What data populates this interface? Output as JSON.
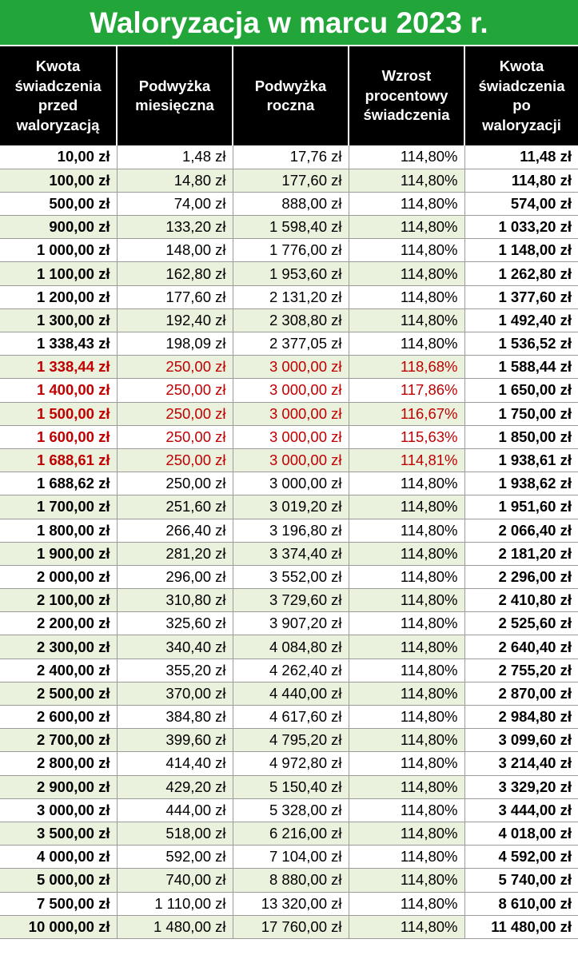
{
  "title": "Waloryzacja w marcu 2023 r.",
  "headers": [
    [
      "Kwota",
      "świadczenia",
      "przed",
      "waloryzacją"
    ],
    [
      "Podwyżka",
      "miesięczna"
    ],
    [
      "Podwyżka",
      "roczna"
    ],
    [
      "Wzrost",
      "procentowy",
      "świadczenia"
    ],
    [
      "Kwota",
      "świadczenia",
      "po",
      "waloryzacji"
    ]
  ],
  "colors": {
    "title_bg": "#22a63a",
    "header_bg": "#000000",
    "alt_row": "#eaf1dd",
    "highlight": "#c00000"
  },
  "rows": [
    {
      "hl": false,
      "cells": [
        "10,00 zł",
        "1,48 zł",
        "17,76 zł",
        "114,80%",
        "11,48 zł"
      ]
    },
    {
      "hl": false,
      "cells": [
        "100,00 zł",
        "14,80 zł",
        "177,60 zł",
        "114,80%",
        "114,80 zł"
      ]
    },
    {
      "hl": false,
      "cells": [
        "500,00 zł",
        "74,00 zł",
        "888,00 zł",
        "114,80%",
        "574,00 zł"
      ]
    },
    {
      "hl": false,
      "cells": [
        "900,00 zł",
        "133,20 zł",
        "1 598,40 zł",
        "114,80%",
        "1 033,20 zł"
      ]
    },
    {
      "hl": false,
      "cells": [
        "1 000,00 zł",
        "148,00 zł",
        "1 776,00 zł",
        "114,80%",
        "1 148,00 zł"
      ]
    },
    {
      "hl": false,
      "cells": [
        "1 100,00 zł",
        "162,80 zł",
        "1 953,60 zł",
        "114,80%",
        "1 262,80 zł"
      ]
    },
    {
      "hl": false,
      "cells": [
        "1 200,00 zł",
        "177,60 zł",
        "2 131,20 zł",
        "114,80%",
        "1 377,60 zł"
      ]
    },
    {
      "hl": false,
      "cells": [
        "1 300,00 zł",
        "192,40 zł",
        "2 308,80 zł",
        "114,80%",
        "1 492,40 zł"
      ]
    },
    {
      "hl": false,
      "cells": [
        "1 338,43 zł",
        "198,09 zł",
        "2 377,05 zł",
        "114,80%",
        "1 536,52 zł"
      ]
    },
    {
      "hl": true,
      "cells": [
        "1 338,44 zł",
        "250,00 zł",
        "3 000,00 zł",
        "118,68%",
        "1 588,44 zł"
      ]
    },
    {
      "hl": true,
      "cells": [
        "1 400,00 zł",
        "250,00 zł",
        "3 000,00 zł",
        "117,86%",
        "1 650,00 zł"
      ]
    },
    {
      "hl": true,
      "cells": [
        "1 500,00 zł",
        "250,00 zł",
        "3 000,00 zł",
        "116,67%",
        "1 750,00 zł"
      ]
    },
    {
      "hl": true,
      "cells": [
        "1 600,00 zł",
        "250,00 zł",
        "3 000,00 zł",
        "115,63%",
        "1 850,00 zł"
      ]
    },
    {
      "hl": true,
      "cells": [
        "1 688,61 zł",
        "250,00 zł",
        "3 000,00 zł",
        "114,81%",
        "1 938,61 zł"
      ]
    },
    {
      "hl": false,
      "cells": [
        "1 688,62 zł",
        "250,00 zł",
        "3 000,00 zł",
        "114,80%",
        "1 938,62 zł"
      ]
    },
    {
      "hl": false,
      "cells": [
        "1 700,00 zł",
        "251,60 zł",
        "3 019,20 zł",
        "114,80%",
        "1 951,60 zł"
      ]
    },
    {
      "hl": false,
      "cells": [
        "1 800,00 zł",
        "266,40 zł",
        "3 196,80 zł",
        "114,80%",
        "2 066,40 zł"
      ]
    },
    {
      "hl": false,
      "cells": [
        "1 900,00 zł",
        "281,20 zł",
        "3 374,40 zł",
        "114,80%",
        "2 181,20 zł"
      ]
    },
    {
      "hl": false,
      "cells": [
        "2 000,00 zł",
        "296,00 zł",
        "3 552,00 zł",
        "114,80%",
        "2 296,00 zł"
      ]
    },
    {
      "hl": false,
      "cells": [
        "2 100,00 zł",
        "310,80 zł",
        "3 729,60 zł",
        "114,80%",
        "2 410,80 zł"
      ]
    },
    {
      "hl": false,
      "cells": [
        "2 200,00 zł",
        "325,60 zł",
        "3 907,20 zł",
        "114,80%",
        "2 525,60 zł"
      ]
    },
    {
      "hl": false,
      "cells": [
        "2 300,00 zł",
        "340,40 zł",
        "4 084,80 zł",
        "114,80%",
        "2 640,40 zł"
      ]
    },
    {
      "hl": false,
      "cells": [
        "2 400,00 zł",
        "355,20 zł",
        "4 262,40 zł",
        "114,80%",
        "2 755,20 zł"
      ]
    },
    {
      "hl": false,
      "cells": [
        "2 500,00 zł",
        "370,00 zł",
        "4 440,00 zł",
        "114,80%",
        "2 870,00 zł"
      ]
    },
    {
      "hl": false,
      "cells": [
        "2 600,00 zł",
        "384,80 zł",
        "4 617,60 zł",
        "114,80%",
        "2 984,80 zł"
      ]
    },
    {
      "hl": false,
      "cells": [
        "2 700,00 zł",
        "399,60 zł",
        "4 795,20 zł",
        "114,80%",
        "3 099,60 zł"
      ]
    },
    {
      "hl": false,
      "cells": [
        "2 800,00 zł",
        "414,40 zł",
        "4 972,80 zł",
        "114,80%",
        "3 214,40 zł"
      ]
    },
    {
      "hl": false,
      "cells": [
        "2 900,00 zł",
        "429,20 zł",
        "5 150,40 zł",
        "114,80%",
        "3 329,20 zł"
      ]
    },
    {
      "hl": false,
      "cells": [
        "3 000,00 zł",
        "444,00 zł",
        "5 328,00 zł",
        "114,80%",
        "3 444,00 zł"
      ]
    },
    {
      "hl": false,
      "cells": [
        "3 500,00 zł",
        "518,00 zł",
        "6 216,00 zł",
        "114,80%",
        "4 018,00 zł"
      ]
    },
    {
      "hl": false,
      "cells": [
        "4 000,00 zł",
        "592,00 zł",
        "7 104,00 zł",
        "114,80%",
        "4 592,00 zł"
      ]
    },
    {
      "hl": false,
      "cells": [
        "5 000,00 zł",
        "740,00 zł",
        "8 880,00 zł",
        "114,80%",
        "5 740,00 zł"
      ]
    },
    {
      "hl": false,
      "cells": [
        "7 500,00 zł",
        "1 110,00 zł",
        "13 320,00 zł",
        "114,80%",
        "8 610,00 zł"
      ]
    },
    {
      "hl": false,
      "cells": [
        "10 000,00 zł",
        "1 480,00 zł",
        "17 760,00 zł",
        "114,80%",
        "11 480,00 zł"
      ]
    }
  ]
}
